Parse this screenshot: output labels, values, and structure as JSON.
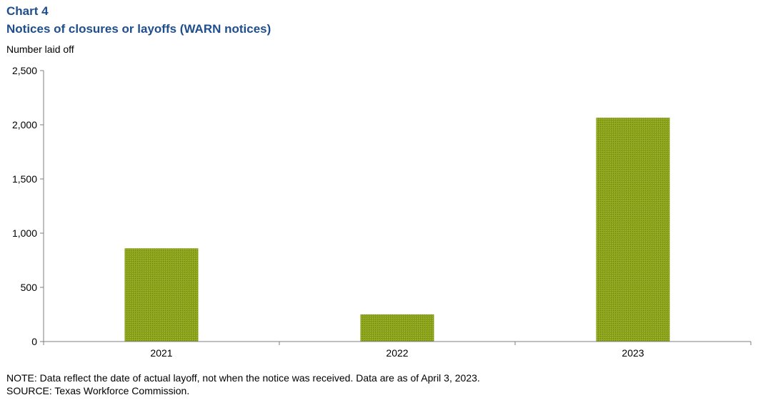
{
  "header": {
    "chart_label": "Chart 4",
    "title": "Notices of closures or layoffs (WARN notices)"
  },
  "chart_data": {
    "type": "bar",
    "categories": [
      "2021",
      "2022",
      "2023"
    ],
    "values": [
      860,
      250,
      2065
    ],
    "ylabel": "Number laid off",
    "ylim": [
      0,
      2500
    ],
    "yticks": [
      0,
      500,
      1000,
      1500,
      2000,
      2500
    ],
    "ytick_labels": [
      "0",
      "500",
      "1,000",
      "1,500",
      "2,000",
      "2,500"
    ],
    "grid": false,
    "legend": "none"
  },
  "colors": {
    "bar": "#8ca31c",
    "title": "#1f4e8c",
    "axis": "#7f7f7f"
  },
  "footer": {
    "note": "NOTE: Data reflect the date of actual layoff, not when the notice was received. Data are as of April 3, 2023.",
    "source": "SOURCE: Texas Workforce Commission."
  }
}
